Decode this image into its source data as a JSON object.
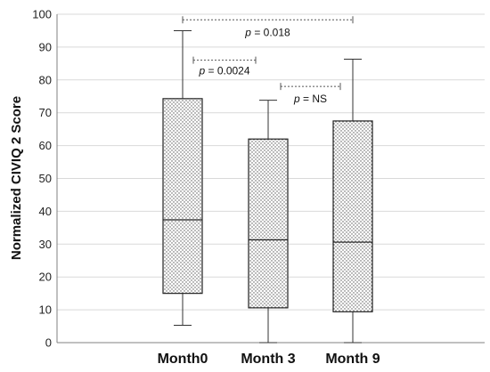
{
  "chart_data": {
    "type": "boxplot",
    "ylabel": "Normalized CIVIQ 2 Score",
    "xlabel": "",
    "ylim": [
      0,
      100
    ],
    "y_ticks": [
      0,
      10,
      20,
      30,
      40,
      50,
      60,
      70,
      80,
      90,
      100
    ],
    "grid": "horizontal",
    "categories": [
      "Month0",
      "Month 3",
      "Month 9"
    ],
    "boxes": [
      {
        "category": "Month0",
        "min": 5.3,
        "q1": 15.0,
        "median": 37.4,
        "q3": 74.3,
        "max": 95.0
      },
      {
        "category": "Month 3",
        "min": 0.0,
        "q1": 10.6,
        "median": 31.3,
        "q3": 62.0,
        "max": 73.8
      },
      {
        "category": "Month 9",
        "min": 0.0,
        "q1": 9.4,
        "median": 30.6,
        "q3": 67.5,
        "max": 86.3
      }
    ],
    "annotations": [
      {
        "from": "Month0",
        "to": "Month 9",
        "label_italic": "p",
        "label_rest": " = 0.018",
        "y": 98.3
      },
      {
        "from": "Month0",
        "to": "Month 3",
        "label_italic": "p",
        "label_rest": " = 0.0024",
        "y": 86.0
      },
      {
        "from": "Month 3",
        "to": "Month 9",
        "label_italic": "p",
        "label_rest": " = NS",
        "y": 78.0
      }
    ]
  },
  "colors": {
    "box_fill_dot": "#555555",
    "grid": "#d9d9d9",
    "axis": "#808080",
    "line": "#333333"
  }
}
